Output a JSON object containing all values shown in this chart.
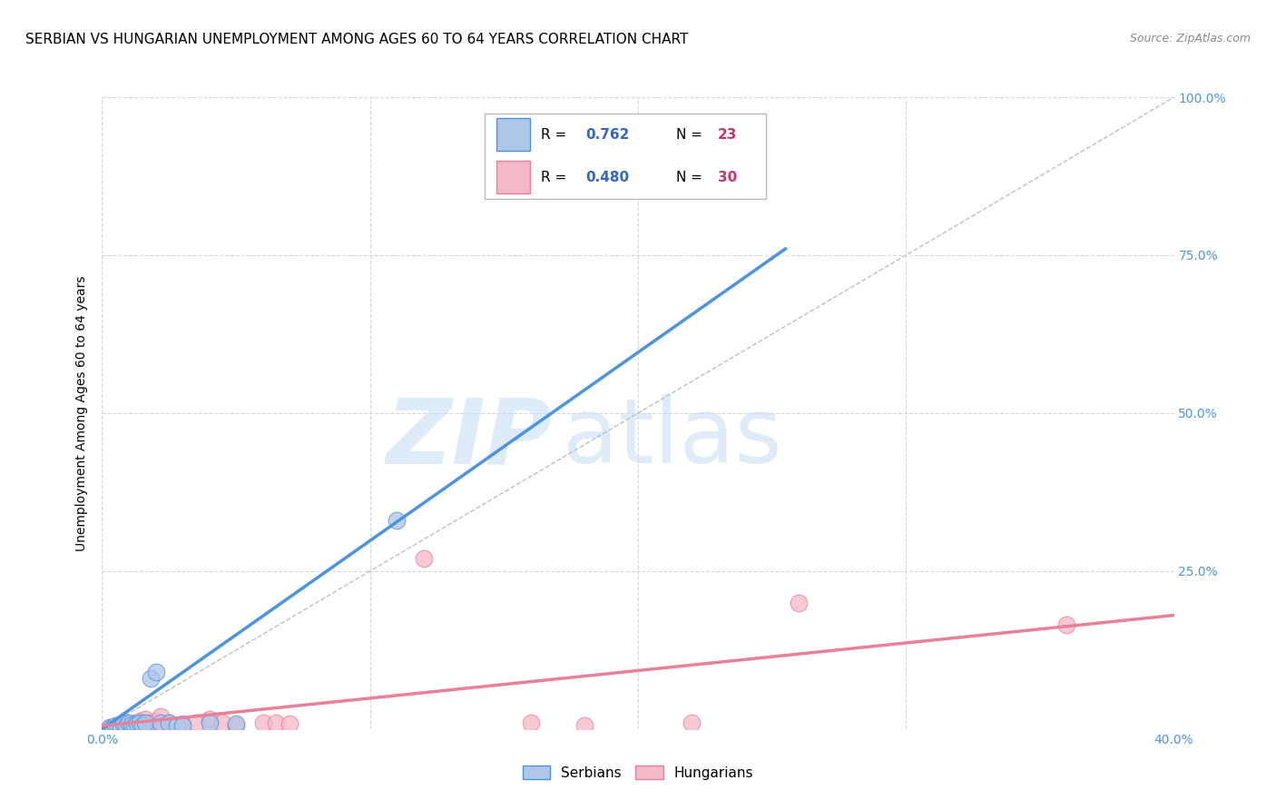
{
  "title": "SERBIAN VS HUNGARIAN UNEMPLOYMENT AMONG AGES 60 TO 64 YEARS CORRELATION CHART",
  "source": "Source: ZipAtlas.com",
  "ylabel_label": "Unemployment Among Ages 60 to 64 years",
  "watermark_top": "ZIP",
  "watermark_bottom": "atlas",
  "xlim": [
    0.0,
    0.4
  ],
  "ylim": [
    0.0,
    1.0
  ],
  "xtick_positions": [
    0.0,
    0.1,
    0.2,
    0.3,
    0.4
  ],
  "ytick_positions": [
    0.0,
    0.25,
    0.5,
    0.75,
    1.0
  ],
  "serbian_R": 0.762,
  "serbian_N": 23,
  "hungarian_R": 0.48,
  "hungarian_N": 30,
  "serbian_color": "#aec6e8",
  "hungarian_color": "#f4b8c8",
  "serbian_line_color": "#4d94e0",
  "hungarian_line_color": "#e8809a",
  "diagonal_color": "#c0c0c0",
  "grid_color": "#d8d8d8",
  "serbian_scatter_x": [
    0.003,
    0.004,
    0.005,
    0.006,
    0.007,
    0.008,
    0.009,
    0.01,
    0.011,
    0.012,
    0.013,
    0.014,
    0.015,
    0.016,
    0.018,
    0.02,
    0.022,
    0.025,
    0.028,
    0.03,
    0.04,
    0.05,
    0.11
  ],
  "serbian_scatter_y": [
    0.002,
    0.003,
    0.005,
    0.004,
    0.003,
    0.008,
    0.005,
    0.01,
    0.007,
    0.006,
    0.008,
    0.01,
    0.005,
    0.01,
    0.08,
    0.09,
    0.01,
    0.01,
    0.005,
    0.005,
    0.01,
    0.008,
    0.33
  ],
  "hungarian_scatter_x": [
    0.003,
    0.005,
    0.006,
    0.008,
    0.009,
    0.01,
    0.011,
    0.012,
    0.013,
    0.014,
    0.015,
    0.016,
    0.018,
    0.02,
    0.022,
    0.025,
    0.03,
    0.035,
    0.04,
    0.045,
    0.05,
    0.06,
    0.065,
    0.07,
    0.12,
    0.16,
    0.18,
    0.22,
    0.26,
    0.36
  ],
  "hungarian_scatter_y": [
    0.003,
    0.004,
    0.005,
    0.006,
    0.01,
    0.008,
    0.005,
    0.01,
    0.008,
    0.012,
    0.01,
    0.015,
    0.01,
    0.012,
    0.02,
    0.01,
    0.008,
    0.01,
    0.015,
    0.01,
    0.005,
    0.01,
    0.01,
    0.008,
    0.27,
    0.01,
    0.005,
    0.01,
    0.2,
    0.165
  ],
  "serbian_line_x": [
    0.0,
    0.255
  ],
  "serbian_line_y": [
    0.0,
    0.76
  ],
  "hungarian_line_x": [
    0.0,
    0.4
  ],
  "hungarian_line_y": [
    0.005,
    0.18
  ],
  "legend_R_color": "#3366cc",
  "legend_N_color": "#cc3366",
  "title_fontsize": 11,
  "axis_label_fontsize": 10,
  "tick_label_color": "#4d94e0",
  "tick_fontsize": 10
}
